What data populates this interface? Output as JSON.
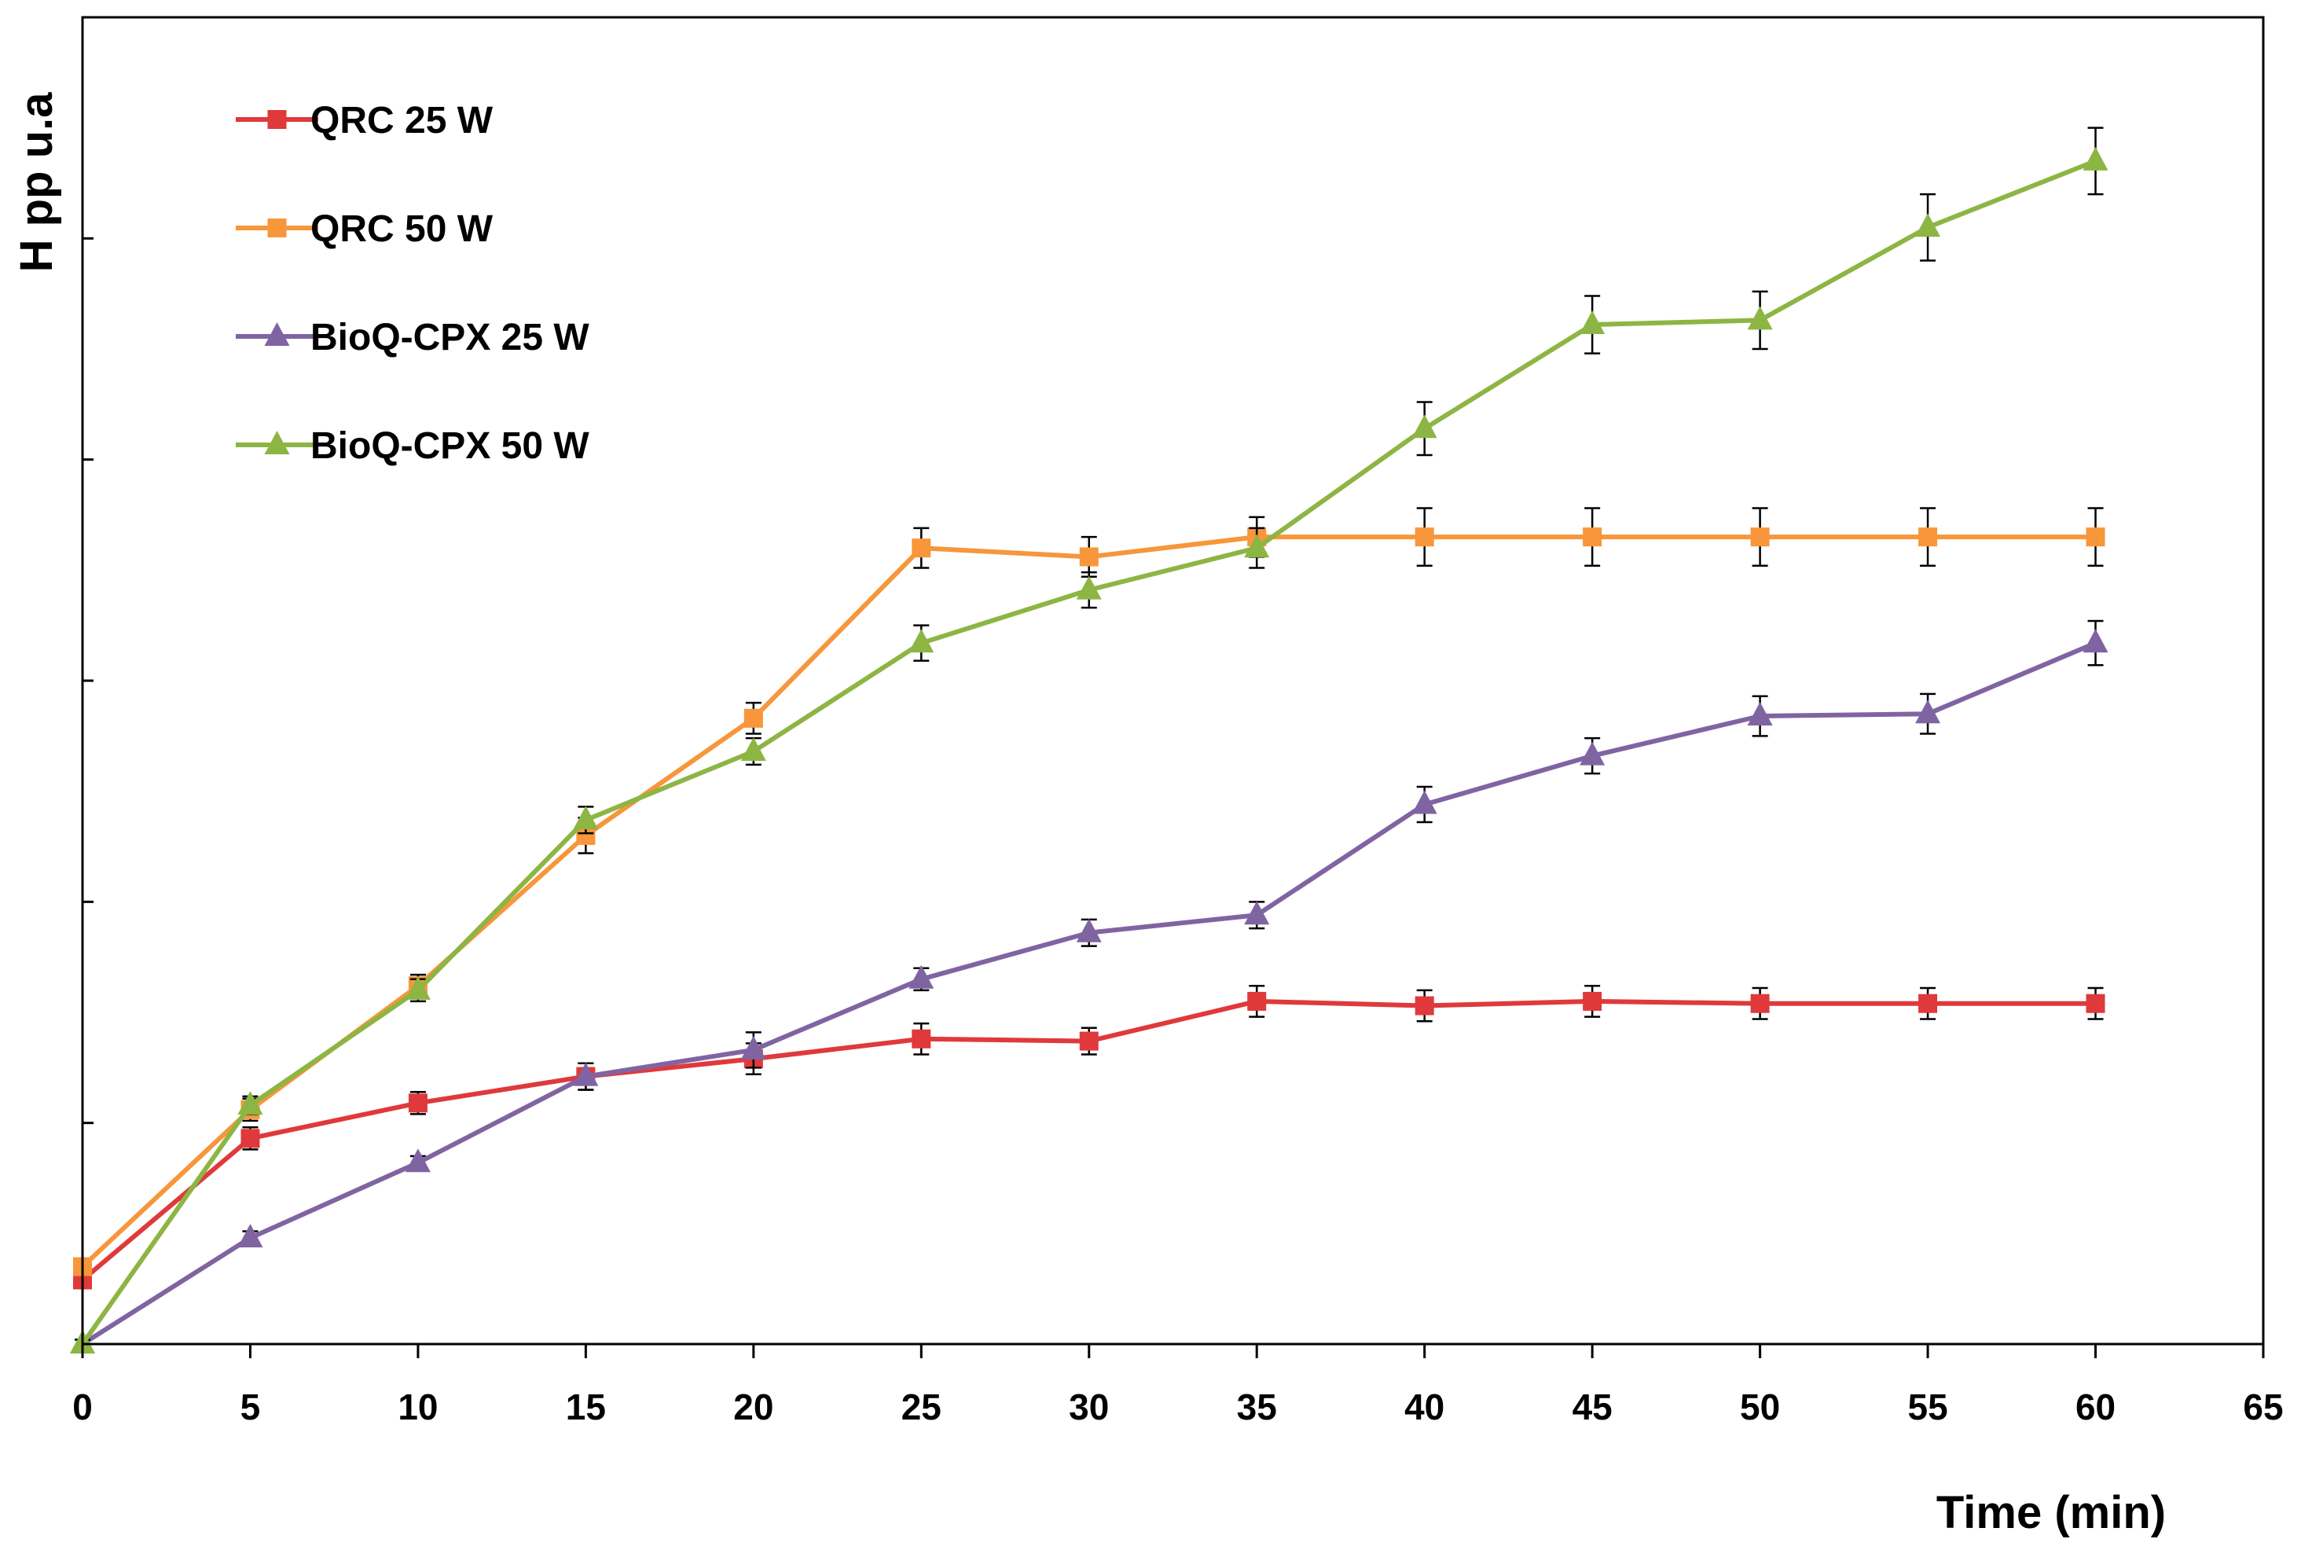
{
  "chart_data": {
    "type": "line",
    "title": "",
    "xlabel": "Time (min)",
    "ylabel": "H pp u.a",
    "xlim": [
      0,
      65
    ],
    "ylim": [
      0,
      6
    ],
    "x_ticks": [
      0,
      5,
      10,
      15,
      20,
      25,
      30,
      35,
      40,
      45,
      50,
      55,
      60,
      65
    ],
    "y_ticks": [
      0,
      1,
      2,
      3,
      4,
      5,
      6
    ],
    "y_tick_labels_shown": false,
    "grid": false,
    "legend_position": "top-left",
    "x": [
      0,
      5,
      10,
      15,
      20,
      25,
      30,
      35,
      40,
      45,
      50,
      55,
      60
    ],
    "series": [
      {
        "name": "QRC 25 W",
        "color": "#E0393B",
        "marker": "square",
        "values": [
          0.29,
          0.93,
          1.09,
          1.21,
          1.29,
          1.38,
          1.37,
          1.55,
          1.53,
          1.55,
          1.54,
          1.54,
          1.54
        ],
        "errors": [
          0.03,
          0.05,
          0.05,
          0.06,
          0.07,
          0.07,
          0.06,
          0.07,
          0.07,
          0.07,
          0.07,
          0.07,
          0.07
        ]
      },
      {
        "name": "QRC 50 W",
        "color": "#F7963A",
        "marker": "square",
        "values": [
          0.35,
          1.06,
          1.62,
          2.3,
          2.83,
          3.6,
          3.56,
          3.65,
          3.65,
          3.65,
          3.65,
          3.65,
          3.65
        ],
        "errors": [
          0.03,
          0.05,
          0.05,
          0.08,
          0.07,
          0.09,
          0.09,
          0.09,
          0.13,
          0.13,
          0.13,
          0.13,
          0.13
        ]
      },
      {
        "name": "BioQ-CPX 25 W",
        "color": "#8064A2",
        "marker": "triangle",
        "values": [
          0.0,
          0.48,
          0.82,
          1.21,
          1.33,
          1.65,
          1.86,
          1.94,
          2.44,
          2.66,
          2.84,
          2.85,
          3.17
        ],
        "errors": [
          0.02,
          0.03,
          0.03,
          0.06,
          0.08,
          0.05,
          0.06,
          0.06,
          0.08,
          0.08,
          0.09,
          0.09,
          0.1
        ]
      },
      {
        "name": "BioQ-CPX 50 W",
        "color": "#8DB544",
        "marker": "triangle",
        "values": [
          0.0,
          1.08,
          1.6,
          2.37,
          2.68,
          3.17,
          3.41,
          3.6,
          4.14,
          4.61,
          4.63,
          5.05,
          5.35
        ],
        "errors": [
          0.02,
          0.04,
          0.05,
          0.06,
          0.06,
          0.08,
          0.08,
          0.09,
          0.12,
          0.13,
          0.13,
          0.15,
          0.15
        ]
      }
    ]
  }
}
